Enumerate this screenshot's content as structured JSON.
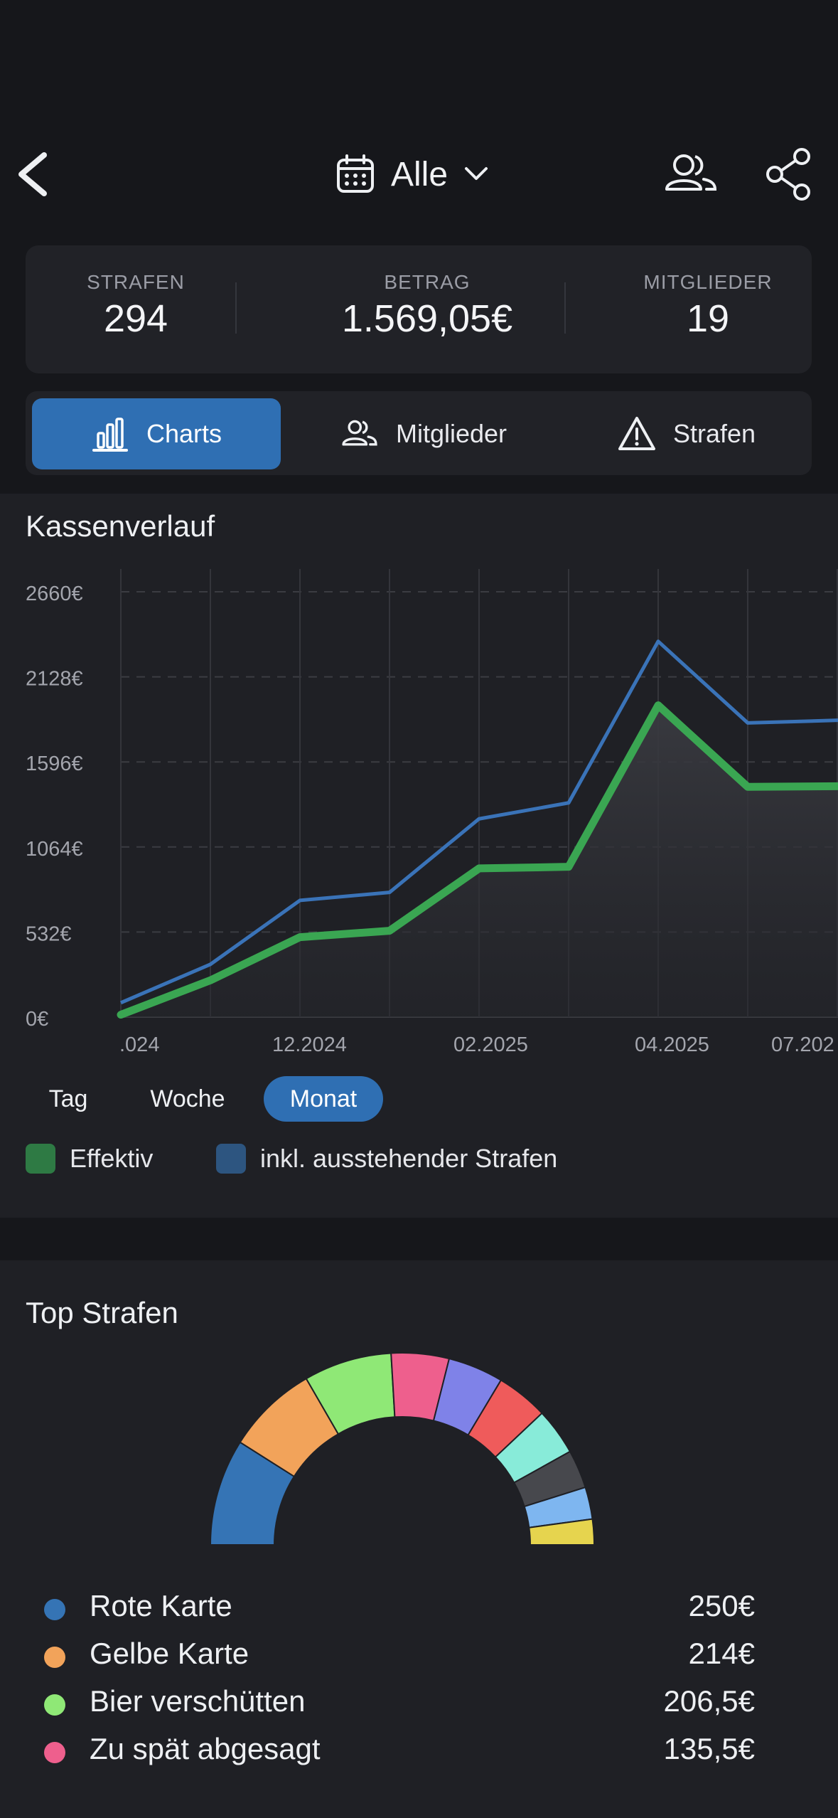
{
  "header": {
    "period_label": "Alle"
  },
  "stats": [
    {
      "label": "STRAFEN",
      "value": "294"
    },
    {
      "label": "BETRAG",
      "value": "1.569,05€"
    },
    {
      "label": "MITGLIEDER",
      "value": "19"
    }
  ],
  "tabs": [
    {
      "label": "Charts",
      "icon": "bar-chart-icon",
      "active": true
    },
    {
      "label": "Mitglieder",
      "icon": "users-icon",
      "active": false
    },
    {
      "label": "Strafen",
      "icon": "warning-icon",
      "active": false
    }
  ],
  "chart_panel": {
    "title": "Kassenverlauf",
    "ranges": [
      "Tag",
      "Woche",
      "Monat"
    ],
    "active_range": "Monat",
    "legend": [
      "Effektiv",
      "inkl. ausstehender Strafen"
    ]
  },
  "chart_data": {
    "type": "area",
    "y_ticks": [
      "2660€",
      "2128€",
      "1596€",
      "1064€",
      "532€",
      "0€"
    ],
    "ylim": [
      0,
      2660
    ],
    "x_tick_labels": [
      ".024",
      "12.2024",
      "02.2025",
      "04.2025",
      "07.202"
    ],
    "series": [
      {
        "name": "Effektiv",
        "color": "#3aa652",
        "values": [
          15,
          230,
          500,
          540,
          930,
          940,
          1950,
          1440,
          1445
        ]
      },
      {
        "name": "inkl. ausstehender Strafen",
        "color": "#3a73b8",
        "values": [
          90,
          330,
          730,
          780,
          1240,
          1340,
          2350,
          1840,
          1860
        ]
      }
    ],
    "grid": true
  },
  "top_panel": {
    "title": "Top Strafen",
    "items": [
      {
        "name": "Rote Karte",
        "amount": "250€",
        "color": "#3574b5"
      },
      {
        "name": "Gelbe Karte",
        "amount": "214€",
        "color": "#f2a35a"
      },
      {
        "name": "Bier verschütten",
        "amount": "206,5€",
        "color": "#8fe876"
      },
      {
        "name": "Zu spät abgesagt",
        "amount": "135,5€",
        "color": "#ee5f8d"
      }
    ]
  },
  "donut_data": {
    "type": "pie",
    "values": [
      250,
      214,
      206.5,
      135.5,
      130,
      122,
      110,
      90,
      75,
      60
    ],
    "colors": [
      "#3574b5",
      "#f2a35a",
      "#8fe876",
      "#ee5f8d",
      "#7f82e8",
      "#ef5b5b",
      "#88ebd9",
      "#47484d",
      "#7eb6f0",
      "#e6d44e"
    ]
  }
}
